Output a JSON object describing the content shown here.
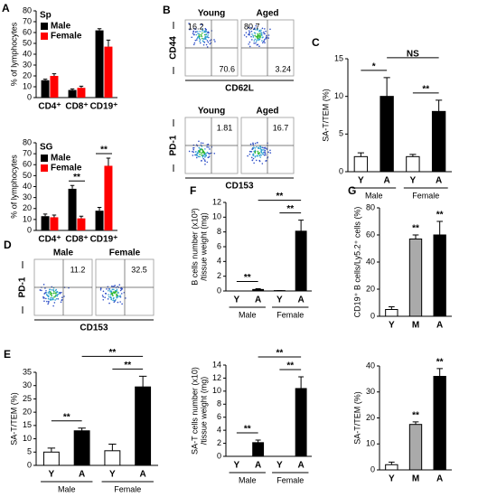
{
  "chart_data": [
    {
      "type": "bar",
      "panel": "A",
      "title": "Sp",
      "ylabel": "% of lymphocytes",
      "categories": [
        "CD4⁺",
        "CD8⁺",
        "CD19⁺"
      ],
      "series": [
        {
          "name": "Male",
          "color": "#000000",
          "values": [
            16,
            7,
            62
          ],
          "errors": [
            1,
            1,
            1.5
          ]
        },
        {
          "name": "Female",
          "color": "#ff0000",
          "values": [
            20,
            9,
            47
          ],
          "errors": [
            2,
            1.5,
            6
          ]
        }
      ],
      "ylim": [
        0,
        80
      ],
      "yticks": [
        0,
        10,
        20,
        30,
        40,
        50,
        60,
        70,
        80
      ],
      "legend": "upper left"
    },
    {
      "type": "bar",
      "title": "SG",
      "ylabel": "% of lymphocytes",
      "categories": [
        "CD4⁺",
        "CD8⁺",
        "CD19⁺"
      ],
      "series": [
        {
          "name": "Male",
          "color": "#000000",
          "values": [
            13,
            38,
            18
          ],
          "errors": [
            2,
            3,
            3
          ]
        },
        {
          "name": "Female",
          "color": "#ff0000",
          "values": [
            12,
            11,
            59
          ],
          "errors": [
            2,
            2,
            7
          ]
        }
      ],
      "ylim": [
        0,
        80
      ],
      "yticks": [
        0,
        10,
        20,
        30,
        40,
        50,
        60,
        70,
        80
      ],
      "legend": "upper left",
      "annotations": [
        "**",
        "**"
      ]
    },
    {
      "type": "flow",
      "panel": "B",
      "rows": [
        {
          "xlabel": "CD62L",
          "ylabel": "CD44",
          "plots": [
            {
              "title": "Young",
              "values": [
                16.2,
                70.6
              ]
            },
            {
              "title": "Aged",
              "values": [
                80.7,
                3.24
              ]
            }
          ]
        },
        {
          "xlabel": "CD153",
          "ylabel": "PD-1",
          "plots": [
            {
              "title": "Young",
              "values": [
                1.81
              ]
            },
            {
              "title": "Aged",
              "values": [
                16.7
              ]
            }
          ]
        }
      ]
    },
    {
      "type": "bar",
      "panel": "C",
      "ylabel": "SA-T/TEM (%)",
      "categories": [
        "Y",
        "A",
        "Y",
        "A"
      ],
      "groups": [
        "Male",
        "Female"
      ],
      "values": [
        2,
        10,
        2,
        8
      ],
      "errors": [
        0.5,
        2.5,
        0.3,
        1.5
      ],
      "colors": [
        "#ffffff",
        "#000000",
        "#ffffff",
        "#000000"
      ],
      "ylim": [
        0,
        15
      ],
      "yticks": [
        0,
        5,
        10,
        15
      ],
      "annotations": [
        "*",
        "NS",
        "**"
      ]
    },
    {
      "type": "flow",
      "panel": "D",
      "rows": [
        {
          "xlabel": "CD153",
          "ylabel": "PD-1",
          "plots": [
            {
              "title": "Male",
              "values": [
                11.2
              ]
            },
            {
              "title": "Female",
              "values": [
                32.5
              ]
            }
          ]
        }
      ]
    },
    {
      "type": "bar",
      "panel": "E",
      "ylabel": "SA-T/TEM (%)",
      "categories": [
        "Y",
        "A",
        "Y",
        "A"
      ],
      "groups": [
        "Male",
        "Female"
      ],
      "values": [
        5,
        13,
        5.5,
        29.5
      ],
      "errors": [
        1.5,
        1,
        2.5,
        4
      ],
      "colors": [
        "#ffffff",
        "#000000",
        "#ffffff",
        "#000000"
      ],
      "ylim": [
        0,
        35
      ],
      "yticks": [
        0,
        5,
        10,
        15,
        20,
        25,
        30,
        35
      ],
      "annotations": [
        "**",
        "**",
        "**"
      ]
    },
    {
      "type": "bar",
      "panel": "F",
      "ylabel": [
        "B cells number (x10³)",
        "/tissue weight (mg)"
      ],
      "categories": [
        "Y",
        "A",
        "Y",
        "A"
      ],
      "groups": [
        "Male",
        "Female"
      ],
      "values": [
        0,
        0.2,
        0.05,
        8.1
      ],
      "errors": [
        0,
        0.1,
        0,
        1.5
      ],
      "colors": [
        "#ffffff",
        "#000000",
        "#ffffff",
        "#000000"
      ],
      "ylim": [
        0,
        12
      ],
      "yticks": [
        0,
        2,
        4,
        6,
        8,
        10,
        12
      ],
      "annotations": [
        "**",
        "**",
        "**"
      ]
    },
    {
      "type": "bar",
      "ylabel": [
        "SA-T cells number (x10)",
        "/tissue weight (mg)"
      ],
      "categories": [
        "Y",
        "A",
        "Y",
        "A"
      ],
      "groups": [
        "Male",
        "Female"
      ],
      "values": [
        0,
        2.1,
        0,
        10.4
      ],
      "errors": [
        0,
        0.4,
        0,
        1.8
      ],
      "colors": [
        "#ffffff",
        "#000000",
        "#ffffff",
        "#000000"
      ],
      "ylim": [
        0,
        14
      ],
      "yticks": [
        0,
        2,
        4,
        6,
        8,
        10,
        12,
        14
      ],
      "annotations": [
        "**",
        "**",
        "**"
      ]
    },
    {
      "type": "bar",
      "panel": "G",
      "ylabel": "CD19⁺ B cells/Ly5.2⁺ cells (%)",
      "categories": [
        "Y",
        "M",
        "A"
      ],
      "values": [
        5,
        57,
        60
      ],
      "errors": [
        2,
        3,
        10
      ],
      "colors": [
        "#ffffff",
        "#aaaaaa",
        "#000000"
      ],
      "ylim": [
        0,
        80
      ],
      "yticks": [
        0,
        20,
        40,
        60,
        80
      ],
      "annotations": [
        "**",
        "**"
      ]
    },
    {
      "type": "bar",
      "ylabel": "SA-T/TEM (%)",
      "categories": [
        "Y",
        "M",
        "A"
      ],
      "values": [
        2,
        17.5,
        36
      ],
      "errors": [
        1,
        1,
        3
      ],
      "colors": [
        "#ffffff",
        "#aaaaaa",
        "#000000"
      ],
      "ylim": [
        0,
        40
      ],
      "yticks": [
        0,
        10,
        20,
        30,
        40
      ],
      "annotations": [
        "**",
        "**"
      ]
    }
  ]
}
